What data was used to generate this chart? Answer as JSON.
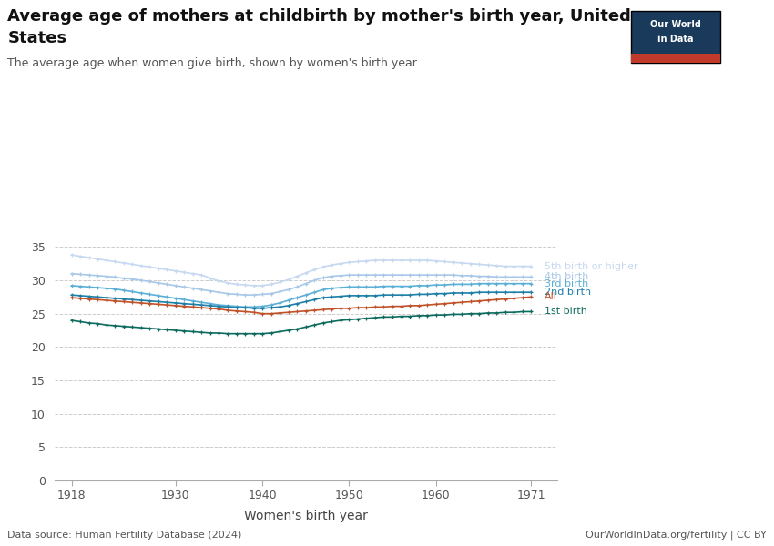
{
  "title_line1": "Average age of mothers at childbirth by mother's birth year, United",
  "title_line2": "States",
  "subtitle": "The average age when women give birth, shown by women's birth year.",
  "xlabel": "Women's birth year",
  "source": "Data source: Human Fertility Database (2024)",
  "credit": "OurWorldInData.org/fertility | CC BY",
  "background_color": "#ffffff",
  "ylim": [
    0,
    36
  ],
  "yticks": [
    0,
    5,
    10,
    15,
    20,
    25,
    30,
    35
  ],
  "xticks": [
    1918,
    1930,
    1940,
    1950,
    1960,
    1971
  ],
  "series": [
    {
      "label": "5th birth or higher",
      "color": "#c6d9f0",
      "x": [
        1918,
        1919,
        1920,
        1921,
        1922,
        1923,
        1924,
        1925,
        1926,
        1927,
        1928,
        1929,
        1930,
        1931,
        1932,
        1933,
        1934,
        1935,
        1936,
        1937,
        1938,
        1939,
        1940,
        1941,
        1942,
        1943,
        1944,
        1945,
        1946,
        1947,
        1948,
        1949,
        1950,
        1951,
        1952,
        1953,
        1954,
        1955,
        1956,
        1957,
        1958,
        1959,
        1960,
        1961,
        1962,
        1963,
        1964,
        1965,
        1966,
        1967,
        1968,
        1969,
        1970,
        1971
      ],
      "y": [
        33.8,
        33.6,
        33.4,
        33.2,
        33.0,
        32.8,
        32.6,
        32.4,
        32.2,
        32.0,
        31.8,
        31.6,
        31.4,
        31.2,
        31.0,
        30.8,
        30.3,
        29.9,
        29.6,
        29.4,
        29.3,
        29.2,
        29.2,
        29.4,
        29.7,
        30.1,
        30.6,
        31.1,
        31.6,
        32.0,
        32.3,
        32.5,
        32.7,
        32.8,
        32.9,
        33.0,
        33.0,
        33.0,
        33.0,
        33.0,
        33.0,
        33.0,
        32.9,
        32.8,
        32.7,
        32.6,
        32.5,
        32.4,
        32.3,
        32.2,
        32.1,
        32.1,
        32.1,
        32.1
      ]
    },
    {
      "label": "4th birth",
      "color": "#a8c8e8",
      "x": [
        1918,
        1919,
        1920,
        1921,
        1922,
        1923,
        1924,
        1925,
        1926,
        1927,
        1928,
        1929,
        1930,
        1931,
        1932,
        1933,
        1934,
        1935,
        1936,
        1937,
        1938,
        1939,
        1940,
        1941,
        1942,
        1943,
        1944,
        1945,
        1946,
        1947,
        1948,
        1949,
        1950,
        1951,
        1952,
        1953,
        1954,
        1955,
        1956,
        1957,
        1958,
        1959,
        1960,
        1961,
        1962,
        1963,
        1964,
        1965,
        1966,
        1967,
        1968,
        1969,
        1970,
        1971
      ],
      "y": [
        31.0,
        30.9,
        30.8,
        30.7,
        30.6,
        30.5,
        30.3,
        30.2,
        30.0,
        29.8,
        29.6,
        29.4,
        29.2,
        29.0,
        28.8,
        28.6,
        28.4,
        28.2,
        28.0,
        27.9,
        27.8,
        27.8,
        27.9,
        28.0,
        28.3,
        28.6,
        29.0,
        29.5,
        30.0,
        30.4,
        30.6,
        30.7,
        30.8,
        30.8,
        30.8,
        30.8,
        30.8,
        30.8,
        30.8,
        30.8,
        30.8,
        30.8,
        30.8,
        30.8,
        30.8,
        30.7,
        30.7,
        30.6,
        30.6,
        30.5,
        30.5,
        30.5,
        30.5,
        30.5
      ]
    },
    {
      "label": "3rd birth",
      "color": "#5bafd6",
      "x": [
        1918,
        1919,
        1920,
        1921,
        1922,
        1923,
        1924,
        1925,
        1926,
        1927,
        1928,
        1929,
        1930,
        1931,
        1932,
        1933,
        1934,
        1935,
        1936,
        1937,
        1938,
        1939,
        1940,
        1941,
        1942,
        1943,
        1944,
        1945,
        1946,
        1947,
        1948,
        1949,
        1950,
        1951,
        1952,
        1953,
        1954,
        1955,
        1956,
        1957,
        1958,
        1959,
        1960,
        1961,
        1962,
        1963,
        1964,
        1965,
        1966,
        1967,
        1968,
        1969,
        1970,
        1971
      ],
      "y": [
        29.2,
        29.1,
        29.0,
        28.9,
        28.8,
        28.7,
        28.5,
        28.3,
        28.1,
        27.9,
        27.7,
        27.5,
        27.3,
        27.1,
        26.9,
        26.7,
        26.5,
        26.3,
        26.2,
        26.1,
        26.0,
        26.0,
        26.1,
        26.3,
        26.6,
        27.0,
        27.4,
        27.8,
        28.2,
        28.6,
        28.8,
        28.9,
        29.0,
        29.0,
        29.0,
        29.0,
        29.1,
        29.1,
        29.1,
        29.1,
        29.2,
        29.2,
        29.3,
        29.3,
        29.4,
        29.4,
        29.4,
        29.5,
        29.5,
        29.5,
        29.5,
        29.5,
        29.5,
        29.5
      ]
    },
    {
      "label": "2nd birth",
      "color": "#1d7fa6",
      "x": [
        1918,
        1919,
        1920,
        1921,
        1922,
        1923,
        1924,
        1925,
        1926,
        1927,
        1928,
        1929,
        1930,
        1931,
        1932,
        1933,
        1934,
        1935,
        1936,
        1937,
        1938,
        1939,
        1940,
        1941,
        1942,
        1943,
        1944,
        1945,
        1946,
        1947,
        1948,
        1949,
        1950,
        1951,
        1952,
        1953,
        1954,
        1955,
        1956,
        1957,
        1958,
        1959,
        1960,
        1961,
        1962,
        1963,
        1964,
        1965,
        1966,
        1967,
        1968,
        1969,
        1970,
        1971
      ],
      "y": [
        27.8,
        27.7,
        27.6,
        27.5,
        27.4,
        27.3,
        27.2,
        27.1,
        27.0,
        26.9,
        26.8,
        26.7,
        26.6,
        26.5,
        26.4,
        26.3,
        26.2,
        26.1,
        26.0,
        25.9,
        25.9,
        25.8,
        25.8,
        25.9,
        26.0,
        26.2,
        26.5,
        26.8,
        27.1,
        27.4,
        27.5,
        27.6,
        27.7,
        27.7,
        27.7,
        27.7,
        27.8,
        27.8,
        27.8,
        27.8,
        27.9,
        27.9,
        28.0,
        28.0,
        28.1,
        28.1,
        28.1,
        28.2,
        28.2,
        28.2,
        28.2,
        28.2,
        28.2,
        28.2
      ]
    },
    {
      "label": "All",
      "color": "#c0522a",
      "x": [
        1918,
        1919,
        1920,
        1921,
        1922,
        1923,
        1924,
        1925,
        1926,
        1927,
        1928,
        1929,
        1930,
        1931,
        1932,
        1933,
        1934,
        1935,
        1936,
        1937,
        1938,
        1939,
        1940,
        1941,
        1942,
        1943,
        1944,
        1945,
        1946,
        1947,
        1948,
        1949,
        1950,
        1951,
        1952,
        1953,
        1954,
        1955,
        1956,
        1957,
        1958,
        1959,
        1960,
        1961,
        1962,
        1963,
        1964,
        1965,
        1966,
        1967,
        1968,
        1969,
        1970,
        1971
      ],
      "y": [
        27.4,
        27.3,
        27.2,
        27.1,
        27.0,
        26.9,
        26.8,
        26.7,
        26.6,
        26.5,
        26.4,
        26.3,
        26.2,
        26.1,
        26.0,
        25.9,
        25.8,
        25.7,
        25.5,
        25.4,
        25.3,
        25.2,
        25.0,
        25.0,
        25.1,
        25.2,
        25.3,
        25.4,
        25.5,
        25.6,
        25.7,
        25.8,
        25.8,
        25.9,
        25.9,
        26.0,
        26.0,
        26.1,
        26.1,
        26.2,
        26.2,
        26.3,
        26.4,
        26.5,
        26.6,
        26.7,
        26.8,
        26.9,
        27.0,
        27.1,
        27.2,
        27.3,
        27.4,
        27.5
      ]
    },
    {
      "label": "1st birth",
      "color": "#0d6b5e",
      "x": [
        1918,
        1919,
        1920,
        1921,
        1922,
        1923,
        1924,
        1925,
        1926,
        1927,
        1928,
        1929,
        1930,
        1931,
        1932,
        1933,
        1934,
        1935,
        1936,
        1937,
        1938,
        1939,
        1940,
        1941,
        1942,
        1943,
        1944,
        1945,
        1946,
        1947,
        1948,
        1949,
        1950,
        1951,
        1952,
        1953,
        1954,
        1955,
        1956,
        1957,
        1958,
        1959,
        1960,
        1961,
        1962,
        1963,
        1964,
        1965,
        1966,
        1967,
        1968,
        1969,
        1970,
        1971
      ],
      "y": [
        24.0,
        23.8,
        23.6,
        23.5,
        23.3,
        23.2,
        23.1,
        23.0,
        22.9,
        22.8,
        22.7,
        22.6,
        22.5,
        22.4,
        22.3,
        22.2,
        22.1,
        22.1,
        22.0,
        22.0,
        22.0,
        22.0,
        22.0,
        22.1,
        22.3,
        22.5,
        22.7,
        23.0,
        23.3,
        23.6,
        23.8,
        24.0,
        24.1,
        24.2,
        24.3,
        24.4,
        24.5,
        24.5,
        24.6,
        24.6,
        24.7,
        24.7,
        24.8,
        24.8,
        24.9,
        24.9,
        25.0,
        25.0,
        25.1,
        25.1,
        25.2,
        25.2,
        25.3,
        25.3
      ]
    }
  ],
  "label_y_offsets": {
    "5th birth or higher": 32.1,
    "4th birth": 30.5,
    "3rd birth": 29.5,
    "2nd birth": 28.2,
    "All": 27.5,
    "1st birth": 25.3
  },
  "owid_logo_bg": "#1a3a5c",
  "owid_logo_accent": "#c0392b"
}
